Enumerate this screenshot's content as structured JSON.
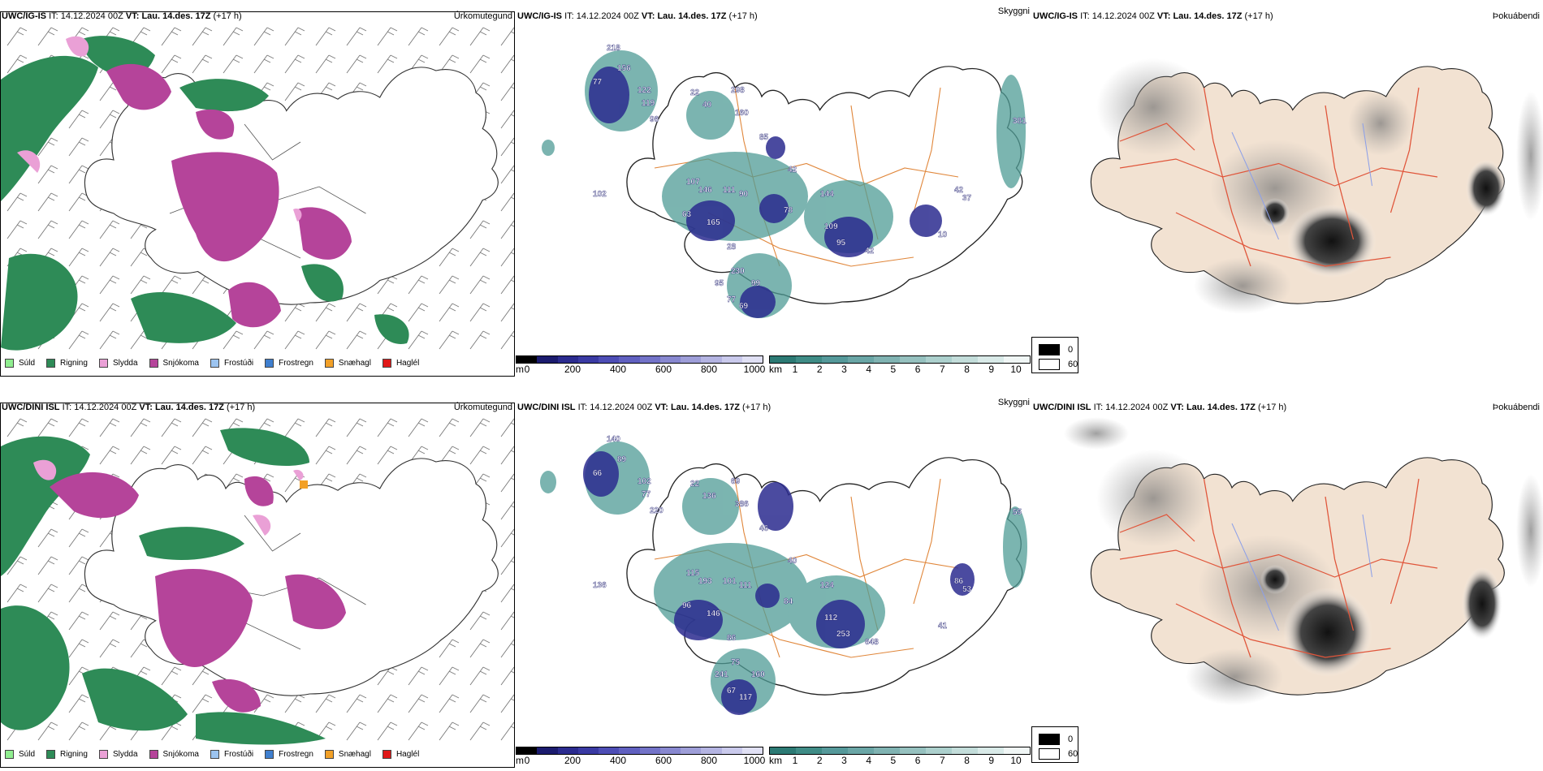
{
  "rows": [
    {
      "model": "UWC/IG-IS",
      "it_label": "IT:",
      "it_value": "14.12.2024 00Z",
      "vt_label": "VT:",
      "vt_value": "Lau. 14.des. 17Z",
      "lead": "(+17 h)",
      "precip": {
        "param": "Úrkomutegund",
        "legend": [
          "Súld",
          "Rigning",
          "Slydda",
          "Snjókoma",
          "Frostúði",
          "Frostregn",
          "Snæhagl",
          "Haglél"
        ]
      },
      "cloud": {
        "param": "Skyggni",
        "labels": [
          "218",
          "156",
          "77",
          "122",
          "22",
          "40",
          "298",
          "119",
          "96",
          "160",
          "42",
          "85",
          "107",
          "146",
          "111",
          "90",
          "63",
          "165",
          "78",
          "144",
          "109",
          "95",
          "42",
          "102",
          "28",
          "230",
          "95",
          "99",
          "77",
          "69",
          "381",
          "37",
          "42",
          "10"
        ]
      },
      "fog": {
        "param": "Þokuábendi"
      }
    },
    {
      "model": "UWC/DINI ISL",
      "it_label": "IT:",
      "it_value": "14.12.2024 00Z",
      "vt_label": "VT:",
      "vt_value": "Lau. 14.des. 17Z",
      "lead": "(+17 h)",
      "precip": {
        "param": "Úrkomutegund",
        "legend": [
          "Súld",
          "Rigning",
          "Slydda",
          "Snjókoma",
          "Frostúði",
          "Frostregn",
          "Snæhagl",
          "Haglél"
        ]
      },
      "cloud": {
        "param": "Skyggni",
        "labels": [
          "140",
          "89",
          "66",
          "102",
          "22",
          "136",
          "69",
          "77",
          "220",
          "386",
          "40",
          "46",
          "115",
          "193",
          "101",
          "111",
          "96",
          "146",
          "84",
          "124",
          "112",
          "253",
          "648",
          "136",
          "86",
          "75",
          "241",
          "160",
          "67",
          "117",
          "55",
          "53",
          "86",
          "41"
        ]
      },
      "fog": {
        "param": "Þokuábendi"
      }
    }
  ],
  "legend_colors": [
    "#90ee90",
    "#2e8b57",
    "#eaa0d6",
    "#b5449a",
    "#9cc4f0",
    "#3f7fcf",
    "#f2a027",
    "#e01818"
  ],
  "height_bar": {
    "unit": "m",
    "ticks": [
      "0",
      "200",
      "400",
      "600",
      "800",
      "1000"
    ],
    "colors": [
      "#000000",
      "#1b1b6e",
      "#2b2b8f",
      "#3a3aa3",
      "#4d4db5",
      "#6060c0",
      "#7373c8",
      "#8888d0",
      "#9e9ed8",
      "#b4b4e2",
      "#cacaec",
      "#e0e0f4"
    ]
  },
  "vis_bar": {
    "unit": "km",
    "ticks": [
      "1",
      "2",
      "3",
      "4",
      "5",
      "6",
      "7",
      "8",
      "9",
      "10"
    ],
    "colors": [
      "#2c7a74",
      "#3f8c86",
      "#55999a",
      "#6aa6a6",
      "#80b3b2",
      "#96c1bf",
      "#acd0cd",
      "#c3ddda",
      "#d9eae8",
      "#f0f6f5"
    ]
  },
  "fog_legend": {
    "entries": [
      {
        "color": "#000000",
        "label": "0"
      },
      {
        "color": "#ffffff",
        "label": "60"
      }
    ]
  }
}
